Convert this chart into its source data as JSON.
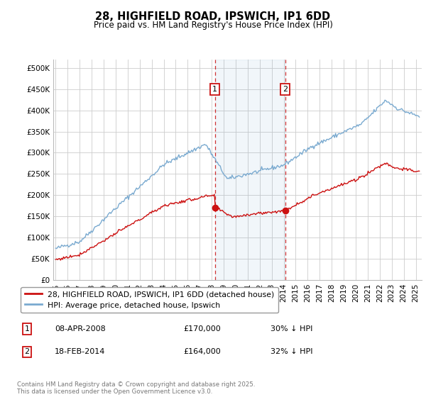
{
  "title": "28, HIGHFIELD ROAD, IPSWICH, IP1 6DD",
  "subtitle": "Price paid vs. HM Land Registry's House Price Index (HPI)",
  "ytick_values": [
    0,
    50000,
    100000,
    150000,
    200000,
    250000,
    300000,
    350000,
    400000,
    450000,
    500000
  ],
  "ylim": [
    0,
    520000
  ],
  "xlim_start": 1994.8,
  "xlim_end": 2025.5,
  "hpi_color": "#7aaad0",
  "price_color": "#cc1111",
  "transaction1_date": 2008.27,
  "transaction1_price": 170000,
  "transaction2_date": 2014.12,
  "transaction2_price": 164000,
  "legend_label1": "28, HIGHFIELD ROAD, IPSWICH, IP1 6DD (detached house)",
  "legend_label2": "HPI: Average price, detached house, Ipswich",
  "footer": "Contains HM Land Registry data © Crown copyright and database right 2025.\nThis data is licensed under the Open Government Licence v3.0.",
  "background_color": "#ffffff",
  "grid_color": "#cccccc"
}
